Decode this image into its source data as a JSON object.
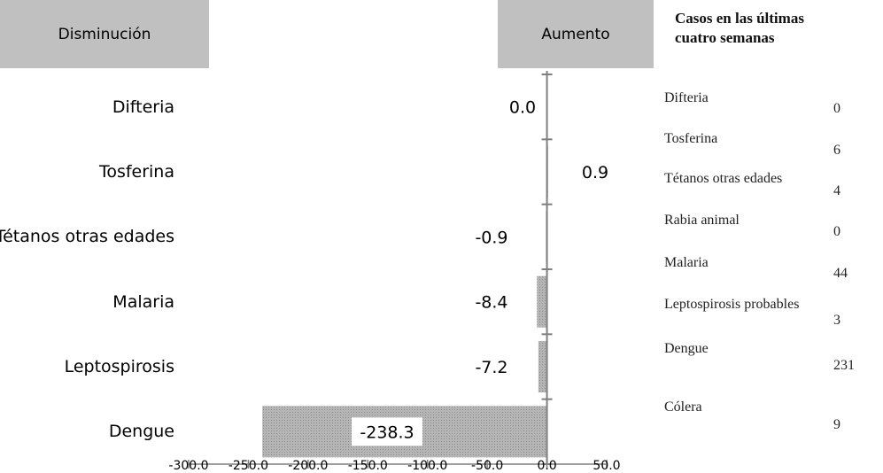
{
  "headers": {
    "decrease": "Disminución",
    "increase": "Aumento"
  },
  "legend": {
    "title_line1": "Casos en las últimas",
    "title_line2": "cuatro semanas",
    "items": [
      {
        "label": "Difteria",
        "value": "0"
      },
      {
        "label": "Tosferina",
        "value": "6"
      },
      {
        "label": "Tétanos otras edades",
        "value": "4"
      },
      {
        "label": "Rabia animal",
        "value": "0"
      },
      {
        "label": "Malaria",
        "value": "44"
      },
      {
        "label": "Leptospirosis probables",
        "value": "3"
      },
      {
        "label": "Dengue",
        "value": "231"
      },
      {
        "label": "Cólera",
        "value": "9"
      }
    ]
  },
  "chart_data": {
    "type": "bar",
    "orientation": "horizontal",
    "categories": [
      "Difteria",
      "Tosferina",
      "Tétanos otras edades",
      "Malaria",
      "Leptospirosis",
      "Dengue"
    ],
    "values": [
      0.0,
      0.9,
      -0.9,
      -8.4,
      -7.2,
      -238.3
    ],
    "value_labels": [
      "0.0",
      "0.9",
      "-0.9",
      "-8.4",
      "-7.2",
      "-238.3"
    ],
    "xlim": [
      -300,
      50
    ],
    "xticks": [
      "-300.0",
      "-250.0",
      "-200.0",
      "-150.0",
      "-100.0",
      "-50.0",
      "0.0",
      "50.0"
    ],
    "bar_color": "#a6a6a6",
    "axis_color": "#7f7f7f",
    "grid": false
  }
}
